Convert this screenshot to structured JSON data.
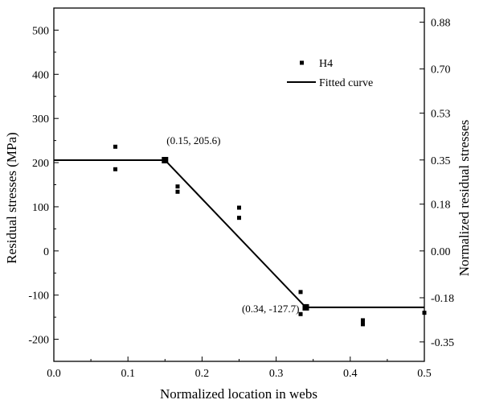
{
  "chart_data": {
    "type": "scatter",
    "xlabel": "Normalized location in webs",
    "ylabel_left": "Residual stresses (MPa)",
    "ylabel_right": "Normalized residual stresses",
    "xlim": [
      0.0,
      0.5
    ],
    "ylim": [
      -250,
      550
    ],
    "x_ticks": [
      0.0,
      0.1,
      0.2,
      0.3,
      0.4,
      0.5
    ],
    "x_tick_labels": [
      "0.0",
      "0.1",
      "0.2",
      "0.3",
      "0.4",
      "0.5"
    ],
    "y_ticks": [
      -200,
      -100,
      0,
      100,
      200,
      300,
      400,
      500
    ],
    "y_tick_labels": [
      "-200",
      "-100",
      "0",
      "100",
      "200",
      "300",
      "400",
      "500"
    ],
    "y2_ticks": [
      -206,
      -106,
      0,
      106,
      206,
      312,
      412,
      518
    ],
    "y2_tick_labels": [
      "-0.35",
      "-0.18",
      "0.00",
      "0.18",
      "0.35",
      "0.53",
      "0.70",
      "0.88"
    ],
    "legend_position": "top-right",
    "series": [
      {
        "name": "H4",
        "kind": "scatter",
        "points": [
          [
            0.083,
            236
          ],
          [
            0.083,
            185
          ],
          [
            0.167,
            146
          ],
          [
            0.167,
            134
          ],
          [
            0.25,
            98
          ],
          [
            0.25,
            75
          ],
          [
            0.333,
            -93
          ],
          [
            0.333,
            -143
          ],
          [
            0.417,
            -157
          ],
          [
            0.417,
            -166
          ],
          [
            0.5,
            -140
          ]
        ]
      },
      {
        "name": "Fitted curve",
        "kind": "line",
        "points": [
          [
            0.0,
            205.6
          ],
          [
            0.15,
            205.6
          ],
          [
            0.34,
            -127.7
          ],
          [
            0.5,
            -127.7
          ]
        ]
      }
    ],
    "breakpoints": [
      {
        "x": 0.15,
        "y": 205.6,
        "label": "(0.15, 205.6)"
      },
      {
        "x": 0.34,
        "y": -127.7,
        "label": "(0.34, -127.7)"
      }
    ]
  }
}
